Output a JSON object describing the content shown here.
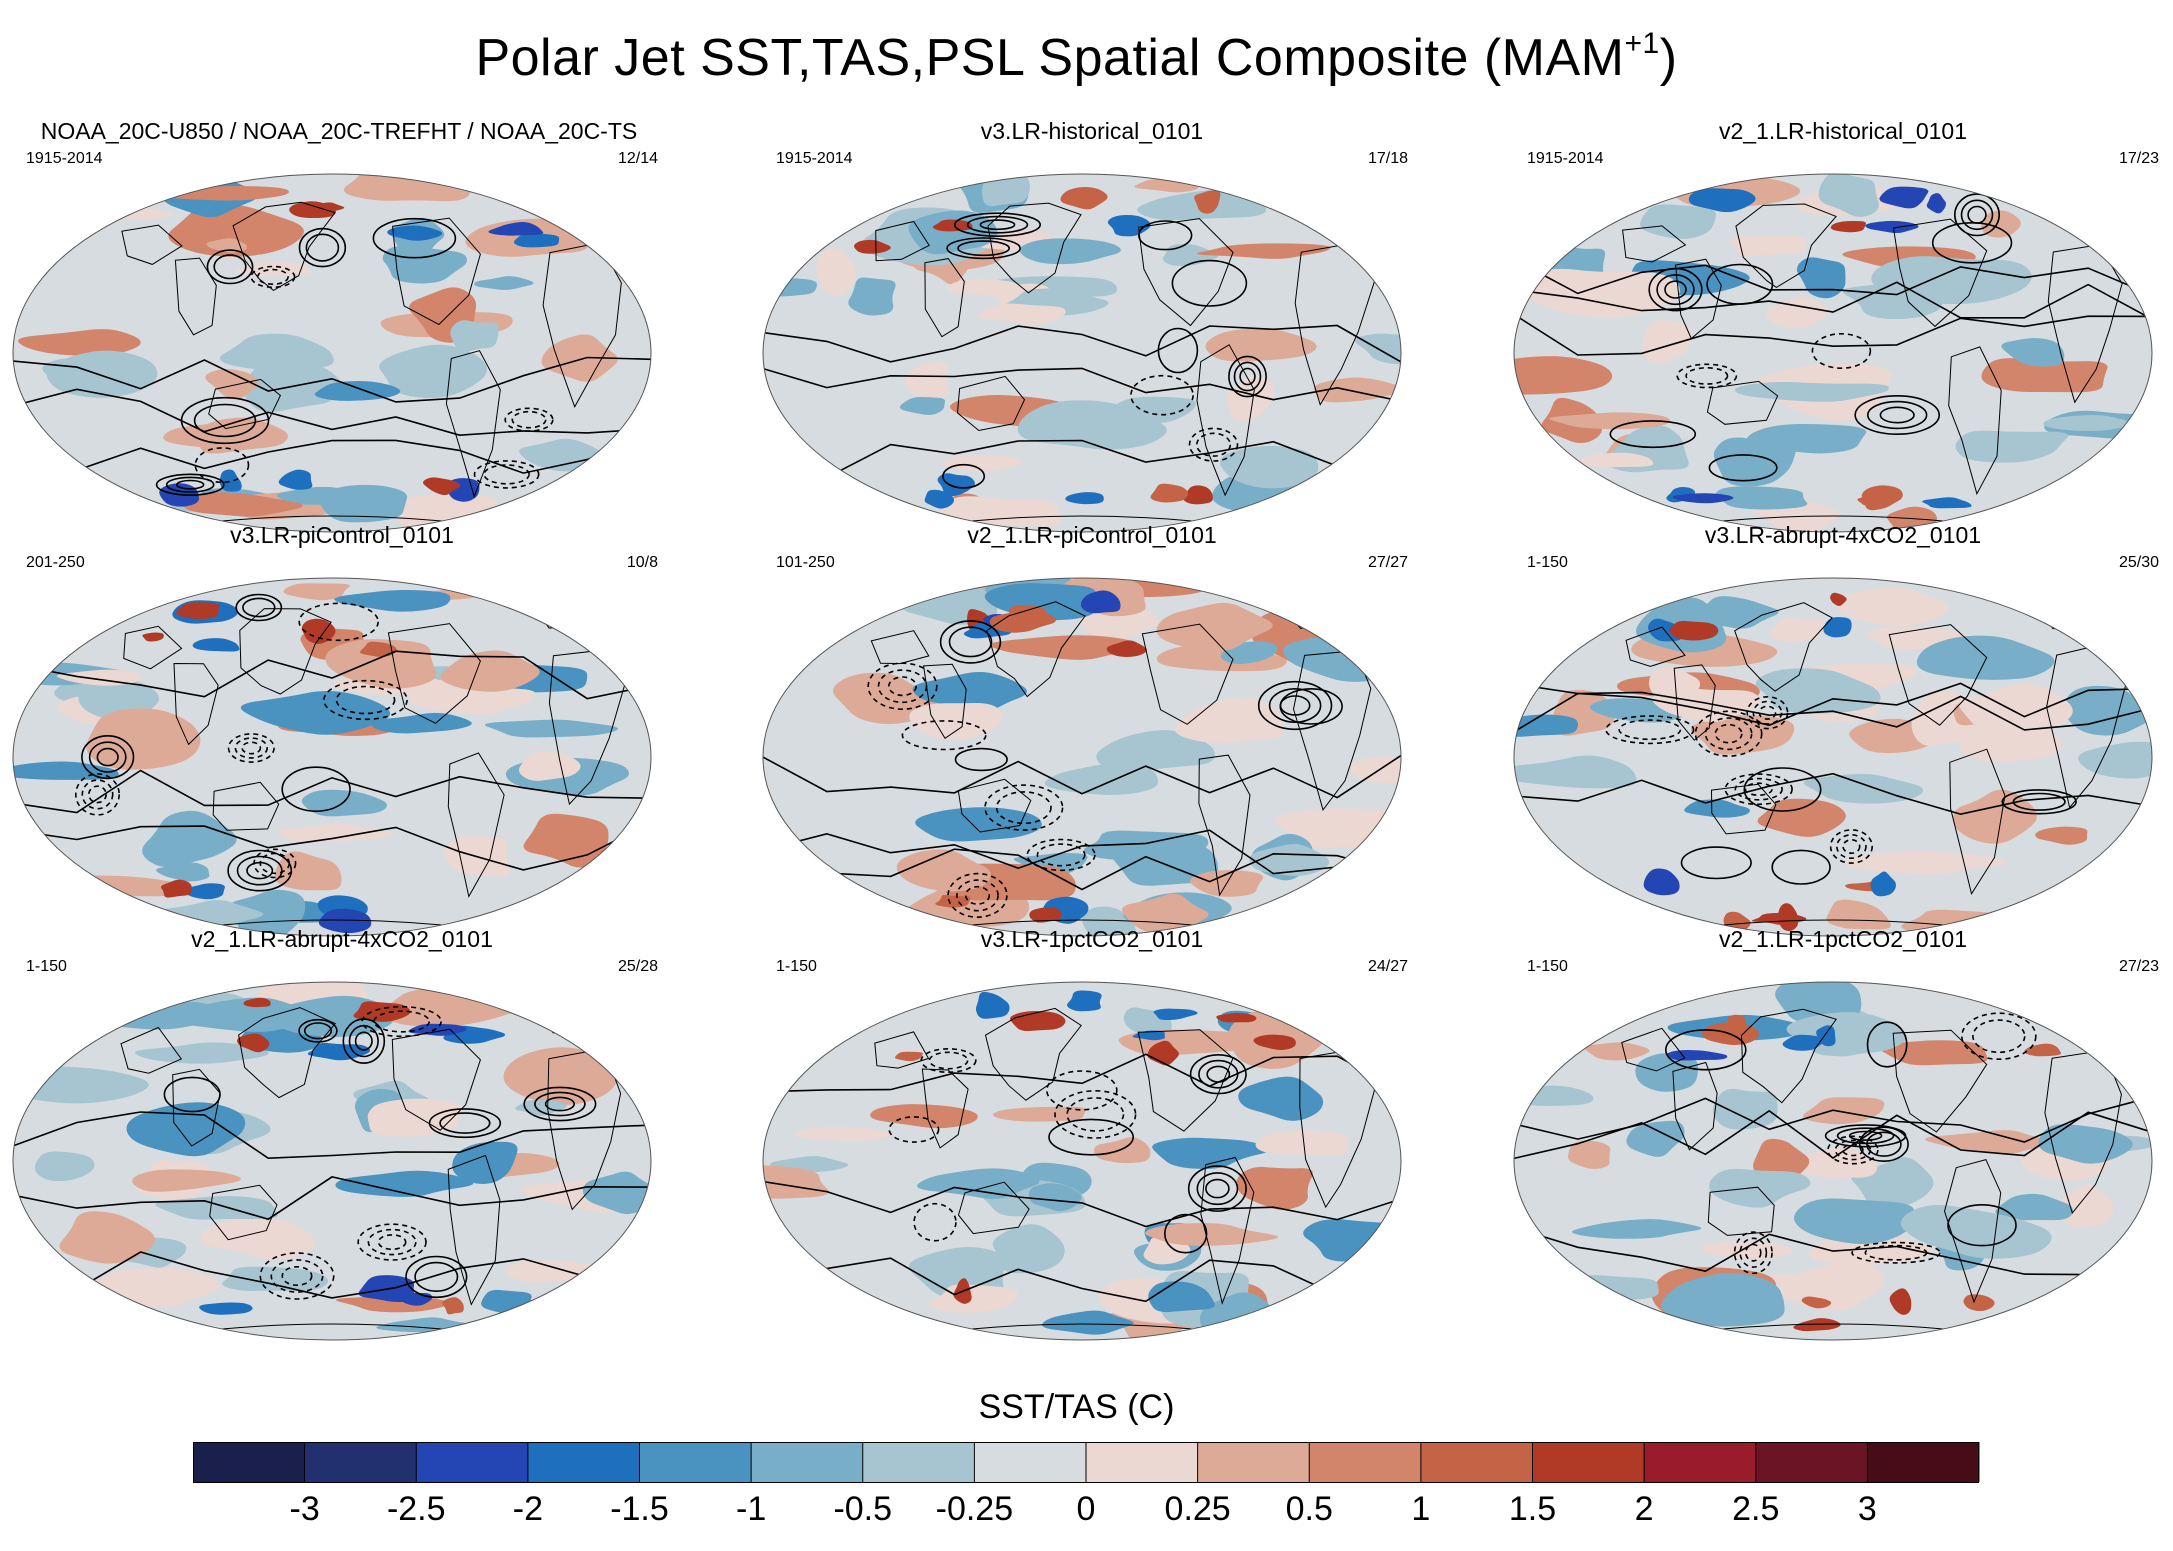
{
  "title": {
    "text": "Polar Jet SST,TAS,PSL Spatial Composite (MAM",
    "superscript": "+1",
    "close": ")"
  },
  "chart_data": {
    "type": "heatmap",
    "description_of_fields": "SST/TAS composite shading with PSL contours on global Robinson-projection maps",
    "panels": [
      {
        "title": "NOAA_20C-U850 / NOAA_20C-TREFHT / NOAA_20C-TS",
        "years": "1915-2014",
        "count": "12/14"
      },
      {
        "title": "v3.LR-historical_0101",
        "years": "1915-2014",
        "count": "17/18"
      },
      {
        "title": "v2_1.LR-historical_0101",
        "years": "1915-2014",
        "count": "17/23"
      },
      {
        "title": "v3.LR-piControl_0101",
        "years": "201-250",
        "count": "10/8"
      },
      {
        "title": "v2_1.LR-piControl_0101",
        "years": "101-250",
        "count": "27/27"
      },
      {
        "title": "v3.LR-abrupt-4xCO2_0101",
        "years": "1-150",
        "count": "25/30"
      },
      {
        "title": "v2_1.LR-abrupt-4xCO2_0101",
        "years": "1-150",
        "count": "25/28"
      },
      {
        "title": "v3.LR-1pctCO2_0101",
        "years": "1-150",
        "count": "24/27"
      },
      {
        "title": "v2_1.LR-1pctCO2_0101",
        "years": "1-150",
        "count": "27/23"
      }
    ],
    "colorbar": {
      "title": "SST/TAS (C)",
      "tick_labels": [
        "-3",
        "-2.5",
        "-2",
        "-1.5",
        "-1",
        "-0.5",
        "-0.25",
        "0",
        "0.25",
        "0.5",
        "1",
        "1.5",
        "2",
        "2.5",
        "3"
      ],
      "colors": [
        "#1b1f4b",
        "#23306f",
        "#2446b5",
        "#1f6fbf",
        "#4a92bf",
        "#78aec8",
        "#a7c4d1",
        "#d6dcdf",
        "#ecd8d3",
        "#deaa98",
        "#d2856b",
        "#c46346",
        "#b03a26",
        "#981c2a",
        "#6a1425",
        "#460c18"
      ]
    }
  }
}
